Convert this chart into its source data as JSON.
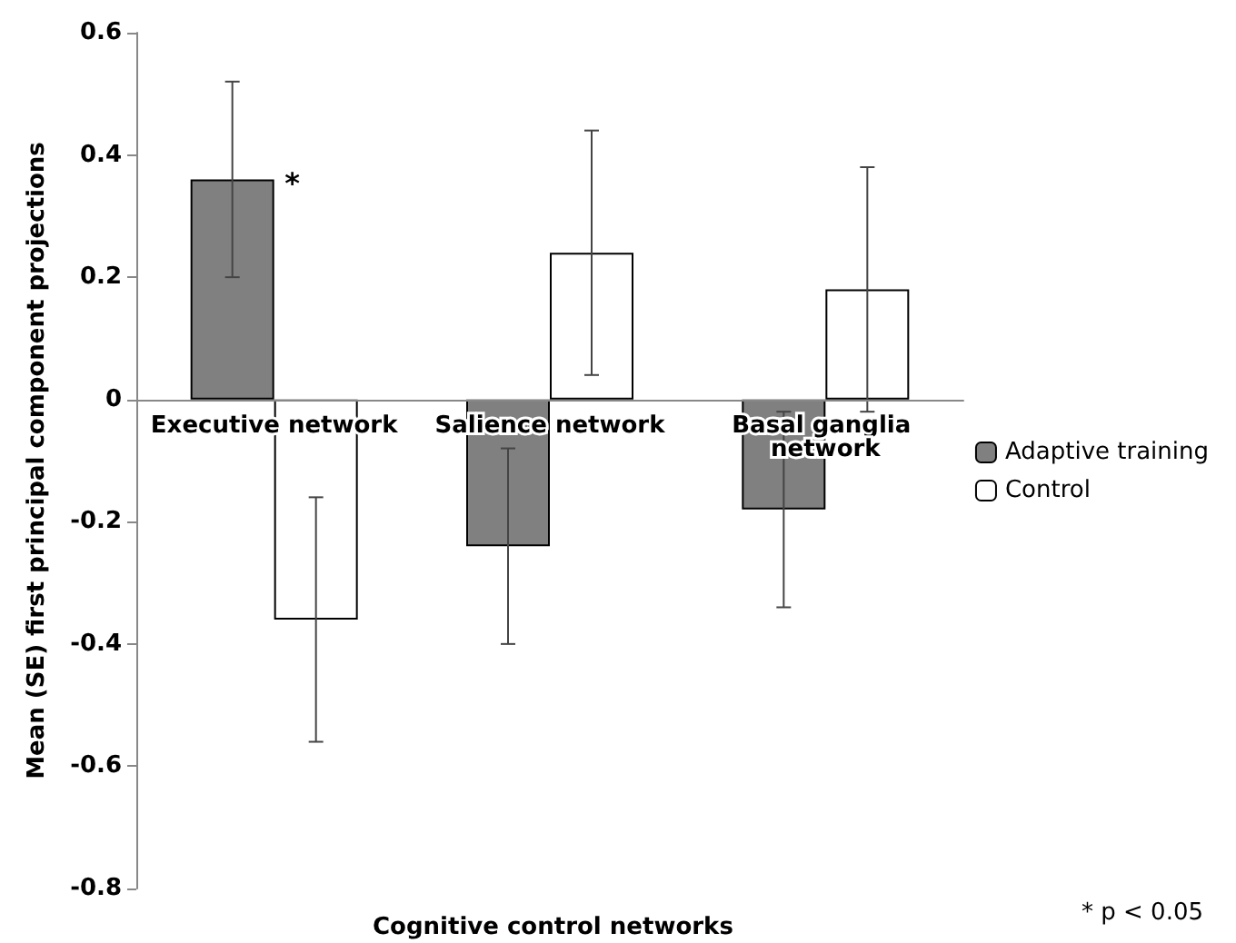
{
  "chart_data": {
    "type": "bar",
    "xlabel": "Cognitive control networks",
    "ylabel": "Mean (SE) first principal component projections",
    "categories": [
      "Executive network",
      "Salience network",
      "Basal ganglia network"
    ],
    "series": [
      {
        "name": "Adaptive training",
        "color": "#808080",
        "values": [
          0.36,
          -0.24,
          -0.18
        ],
        "errors": [
          0.16,
          0.16,
          0.16
        ]
      },
      {
        "name": "Control",
        "color": "#ffffff",
        "values": [
          -0.36,
          0.24,
          0.18
        ],
        "errors": [
          0.2,
          0.2,
          0.2
        ]
      }
    ],
    "ylim": [
      -0.8,
      0.6
    ],
    "yticks": [
      -0.8,
      -0.6,
      -0.4,
      -0.2,
      0,
      0.2,
      0.4,
      0.6
    ],
    "grid": false,
    "legend": "right",
    "annotations": [
      {
        "text": "*",
        "x": "Executive network",
        "y": 0.33
      },
      "* p < 0.05"
    ]
  }
}
